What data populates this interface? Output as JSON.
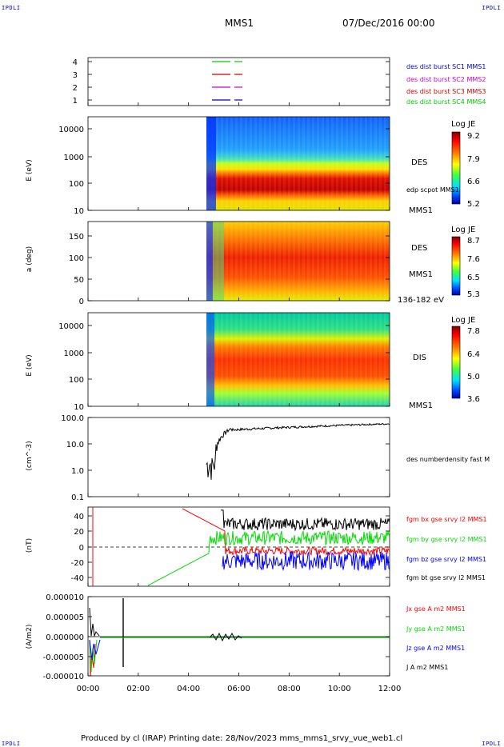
{
  "header": {
    "corner_left": "IPDLI",
    "corner_right": "IPDLI",
    "mission": "MMS1",
    "date": "07/Dec/2016 00:00"
  },
  "footer": {
    "text": "Produced by cl (IRAP)   Printing date: 28/Nov/2023   mms_mms1_srvy_vue_web1.cl",
    "corner_left": "IPDLI",
    "corner_right": "IPDLI"
  },
  "colors": {
    "c1": "#0000cc",
    "c2": "#cc00cc",
    "c3": "#cc0000",
    "c4": "#00cc00",
    "red": "#ff0000",
    "green": "#00dd00",
    "blue": "#0000ff",
    "black": "#000000"
  },
  "chart_data": [
    {
      "id": "burst",
      "type": "line",
      "yticks": [
        "4",
        "3",
        "2",
        "1"
      ],
      "legend": [
        {
          "label": "des dist burst SC1 MMS1",
          "color": "#0000cc"
        },
        {
          "label": "des dist burst SC2 MMS2",
          "color": "#cc00cc"
        },
        {
          "label": "des dist burst SC3 MMS3",
          "color": "#cc0000"
        },
        {
          "label": "des dist burst SC4 MMS4",
          "color": "#00cc00"
        }
      ]
    },
    {
      "id": "des_energy",
      "type": "heatmap",
      "ylabel": "E (eV)",
      "yticks": [
        "10000",
        "1000",
        "100",
        "10"
      ],
      "side_top": "DES",
      "side_mid": "edp scpot MMS1",
      "side_bot": "MMS1",
      "colorbar": {
        "title": "Log JE",
        "ticks": [
          "9.2",
          "7.9",
          "6.6",
          "5.2"
        ]
      }
    },
    {
      "id": "des_pitch",
      "type": "heatmap",
      "ylabel": "a (deg)",
      "yticks": [
        "150",
        "100",
        "50",
        "0"
      ],
      "side_top": "DES",
      "side_mid": "MMS1",
      "side_bot": "136-182 eV",
      "colorbar": {
        "title": "Log JE",
        "ticks": [
          "8.7",
          "7.6",
          "6.5",
          "5.3"
        ]
      }
    },
    {
      "id": "dis_energy",
      "type": "heatmap",
      "ylabel": "E (eV)",
      "yticks": [
        "10000",
        "1000",
        "100",
        "10"
      ],
      "side_top": "DIS",
      "side_bot": "MMS1",
      "colorbar": {
        "title": "Log JE",
        "ticks": [
          "7.8",
          "6.4",
          "5.0",
          "3.6"
        ]
      }
    },
    {
      "id": "density",
      "type": "line",
      "ylabel": "(cm^-3)",
      "yticks": [
        "100.0",
        "10.0",
        "1.0",
        "0.1"
      ],
      "legend": [
        {
          "label": "des numberdensity fast M",
          "color": "#000000"
        }
      ]
    },
    {
      "id": "bfield",
      "type": "line",
      "ylabel": "(nT)",
      "yticks": [
        "40",
        "20",
        "0",
        "-20",
        "-40"
      ],
      "legend": [
        {
          "label": "fgm bx gse srvy l2 MMS1",
          "color": "#ff0000"
        },
        {
          "label": "fgm by gse srvy l2 MMS1",
          "color": "#00dd00"
        },
        {
          "label": "fgm bz gse srvy l2 MMS1",
          "color": "#0000ff"
        },
        {
          "label": "fgm bt gse srvy l2 MMS1",
          "color": "#000000"
        }
      ]
    },
    {
      "id": "current",
      "type": "line",
      "ylabel": "(A/m2)",
      "yticks": [
        "0.000010",
        "0.000005",
        "0.000000",
        "-0.000005",
        "-0.000010"
      ],
      "legend": [
        {
          "label": "Jx gse A m2 MMS1",
          "color": "#ff0000"
        },
        {
          "label": "Jy gse A m2 MMS1",
          "color": "#00dd00"
        },
        {
          "label": "Jz gse A m2 MMS1",
          "color": "#0000ff"
        },
        {
          "label": "J A m2 MMS1",
          "color": "#000000"
        }
      ],
      "xticks": [
        "00:00",
        "02:00",
        "04:00",
        "06:00",
        "08:00",
        "10:00",
        "12:00"
      ]
    }
  ]
}
